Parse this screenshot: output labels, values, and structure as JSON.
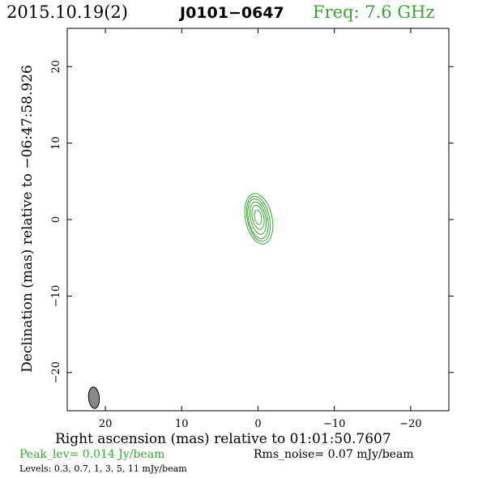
{
  "header": {
    "date": "2015.10.19(2)",
    "source": "J0101−0647",
    "frequency": "Freq: 7.6 GHz"
  },
  "footer": {
    "peak": "Peak_lev=  0.014 Jy/beam",
    "rms": "Rms_noise= 0.07 mJy/beam",
    "levels": "Levels: 0.3, 0.7,   1,   3,   5,  11 mJy/beam"
  },
  "colors": {
    "contour": "#3aa534",
    "beam": "#888888",
    "text_accent": "#3aa534"
  },
  "chart_data": {
    "type": "contour",
    "title": "J0101−0647",
    "xlabel": "Right ascension (mas) relative to 01:01:50.7607",
    "ylabel": "Declination (mas) relative to −06:47:58.926",
    "xlim": [
      25,
      -25
    ],
    "ylim": [
      -25,
      25
    ],
    "x_ticks": [
      20,
      10,
      0,
      -10,
      -20
    ],
    "y_ticks": [
      20,
      10,
      0,
      -10,
      -20
    ],
    "x_tick_labels": [
      "20",
      "10",
      "0",
      "−10",
      "−20"
    ],
    "y_tick_labels": [
      "20",
      "10",
      "0",
      "−10",
      "−20"
    ],
    "contour_levels_mJy": [
      0.3,
      0.7,
      1,
      3,
      5,
      11
    ],
    "contours": [
      {
        "level": 0.3,
        "cx": -0.1,
        "cy": 0.1,
        "a": 1.75,
        "b": 3.35,
        "angle": 12
      },
      {
        "level": 0.7,
        "cx": -0.05,
        "cy": 0.1,
        "a": 1.45,
        "b": 3.0,
        "angle": 12
      },
      {
        "level": 1,
        "cx": 0.0,
        "cy": 0.1,
        "a": 1.25,
        "b": 2.65,
        "angle": 12
      },
      {
        "level": 3,
        "cx": 0.0,
        "cy": 0.2,
        "a": 1.0,
        "b": 2.15,
        "angle": 12
      },
      {
        "level": 5,
        "cx": 0.0,
        "cy": 0.3,
        "a": 0.75,
        "b": 1.6,
        "angle": 12
      },
      {
        "level": 11,
        "cx": 0.0,
        "cy": 0.3,
        "a": 0.45,
        "b": 0.95,
        "angle": 10
      }
    ],
    "beam": {
      "cx": 21.5,
      "cy": -23.3,
      "a": 0.7,
      "b": 1.4,
      "angle": 5
    }
  }
}
